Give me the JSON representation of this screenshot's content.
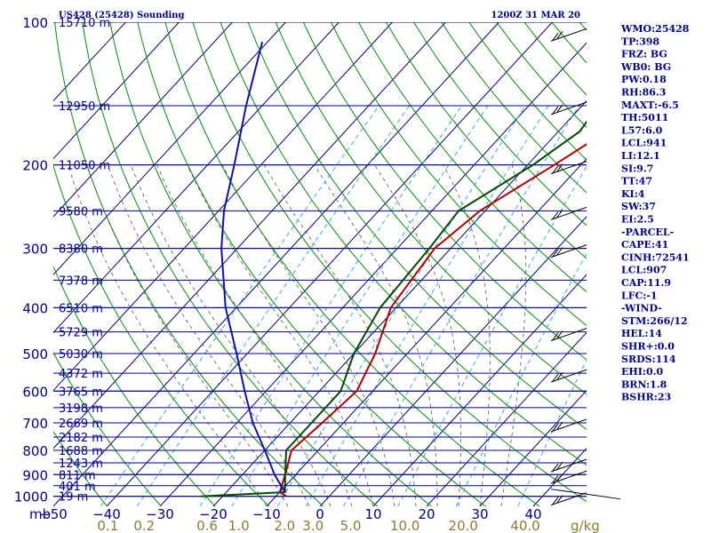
{
  "chart_data": {
    "type": "line",
    "title_left": "US428 (25428) Sounding",
    "title_right": "1200Z 31 MAR 20",
    "pressure_unit_label": "mb",
    "mixing_ratio_unit_label": "g/kg",
    "pressure_ticks": [
      100,
      200,
      300,
      400,
      500,
      600,
      700,
      800,
      900,
      1000
    ],
    "temperature_ticks": [
      -50,
      -40,
      -30,
      -20,
      -10,
      0,
      10,
      20,
      30,
      40
    ],
    "temperature_tick_labels": [
      "−50",
      "−40",
      "−30",
      "−20",
      "−10",
      "0",
      "10",
      "20",
      "30",
      "40"
    ],
    "temperature_range": [
      -50,
      50
    ],
    "pressure_range": [
      100,
      1050
    ],
    "mixing_ratio_ticks": [
      "0.1",
      "0.2",
      "0.6",
      "1.0",
      "2.0",
      "3.0",
      "5.0",
      "10.0",
      "20.0",
      "40.0"
    ],
    "height_labels": [
      {
        "p": 100,
        "label": "15710 m"
      },
      {
        "p": 150,
        "label": "12950 m"
      },
      {
        "p": 200,
        "label": "11050 m"
      },
      {
        "p": 250,
        "label": "9580 m"
      },
      {
        "p": 300,
        "label": "8380 m"
      },
      {
        "p": 350,
        "label": "7378 m"
      },
      {
        "p": 400,
        "label": "6510 m"
      },
      {
        "p": 450,
        "label": "5729 m"
      },
      {
        "p": 500,
        "label": "5030 m"
      },
      {
        "p": 550,
        "label": "4372 m"
      },
      {
        "p": 600,
        "label": "3765 m"
      },
      {
        "p": 650,
        "label": "3198 m"
      },
      {
        "p": 700,
        "label": "2669 m"
      },
      {
        "p": 750,
        "label": "2182 m"
      },
      {
        "p": 800,
        "label": "1688 m"
      },
      {
        "p": 850,
        "label": "1243 m"
      },
      {
        "p": 900,
        "label": "811 m"
      },
      {
        "p": 950,
        "label": "401 m"
      },
      {
        "p": 1000,
        "label": "19 m"
      }
    ],
    "series": [
      {
        "kind": "temperature",
        "color": "#b00000",
        "points": [
          [
            1000,
            -8
          ],
          [
            980,
            -10
          ],
          [
            900,
            -12
          ],
          [
            800,
            -15
          ],
          [
            700,
            -14
          ],
          [
            600,
            -13
          ],
          [
            500,
            -16
          ],
          [
            400,
            -21
          ],
          [
            300,
            -23
          ],
          [
            250,
            -21
          ],
          [
            200,
            -15
          ],
          [
            170,
            -11
          ],
          [
            150,
            -10
          ],
          [
            100,
            2
          ]
        ]
      },
      {
        "kind": "dewpoint",
        "color": "#004a00",
        "points": [
          [
            1000,
            -24
          ],
          [
            980,
            -9
          ],
          [
            900,
            -12
          ],
          [
            800,
            -16
          ],
          [
            700,
            -16
          ],
          [
            600,
            -16
          ],
          [
            500,
            -20
          ],
          [
            400,
            -23
          ],
          [
            300,
            -24
          ],
          [
            250,
            -25
          ],
          [
            200,
            -19
          ],
          [
            170,
            -16
          ],
          [
            150,
            -17
          ],
          [
            100,
            -4
          ]
        ]
      },
      {
        "kind": "parcel",
        "color": "#1010b0",
        "points": [
          [
            980,
            -9
          ],
          [
            900,
            -14
          ],
          [
            800,
            -20
          ],
          [
            700,
            -27
          ],
          [
            600,
            -34
          ],
          [
            500,
            -42
          ],
          [
            400,
            -52
          ],
          [
            300,
            -63
          ],
          [
            250,
            -69
          ],
          [
            200,
            -75
          ],
          [
            150,
            -83
          ],
          [
            110,
            -91
          ]
        ]
      }
    ],
    "wind_barbs": [
      {
        "p": 105
      },
      {
        "p": 150
      },
      {
        "p": 200
      },
      {
        "p": 250
      },
      {
        "p": 300
      },
      {
        "p": 450
      },
      {
        "p": 550
      },
      {
        "p": 700
      },
      {
        "p": 850
      },
      {
        "p": 900
      },
      {
        "p": 1000
      }
    ],
    "grid_colors": {
      "isobar": "#000080",
      "isotherm": "#000080",
      "dry_adiabat": "#009000",
      "moist_adiabat": "#555555",
      "mixing_ratio": "#2aa0d0"
    }
  },
  "indices": [
    "WMO:25428",
    "TP:398",
    "FRZ: BG",
    "WB0: BG",
    "PW:0.18",
    "RH:86.3",
    "MAXT:-6.5",
    "TH:5011",
    "L57:6.0",
    "LCL:941",
    "LI:12.1",
    "SI:9.7",
    "TT:47",
    "KI:4",
    "SW:37",
    "EI:2.5",
    "-PARCEL-",
    "CAPE:41",
    "CINH:72541",
    "LCL:907",
    "CAP:11.9",
    "LFC:-1",
    "-WIND-",
    "STM:266/12",
    "HEL:14",
    "SHR+:0.0",
    "SRDS:114",
    "EHI:0.0",
    "BRN:1.8",
    "BSHR:23"
  ]
}
